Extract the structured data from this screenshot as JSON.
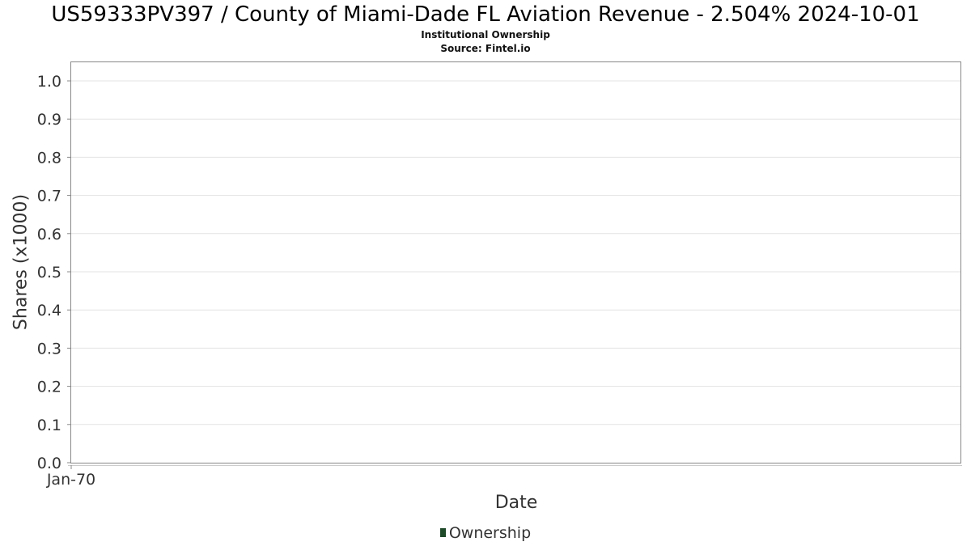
{
  "colors": {
    "grid": "#e3e3e3",
    "frame": "#888888",
    "series": "#1f4a2a"
  },
  "chart_data": {
    "type": "area",
    "title": "US59333PV397 / County of Miami-Dade FL Aviation Revenue - 2.504% 2024-10-01",
    "subtitle": "Institutional Ownership",
    "source": "Source: Fintel.io",
    "xlabel": "Date",
    "ylabel": "Shares (x1000)",
    "ylim": [
      0,
      1.0
    ],
    "yticks": [
      "0.0",
      "0.1",
      "0.2",
      "0.3",
      "0.4",
      "0.5",
      "0.6",
      "0.7",
      "0.8",
      "0.9",
      "1.0"
    ],
    "xticks": [
      "Jan-70"
    ],
    "grid": true,
    "legend_position": "bottom-center",
    "series": [
      {
        "name": "Ownership",
        "x": [],
        "values": []
      }
    ]
  }
}
